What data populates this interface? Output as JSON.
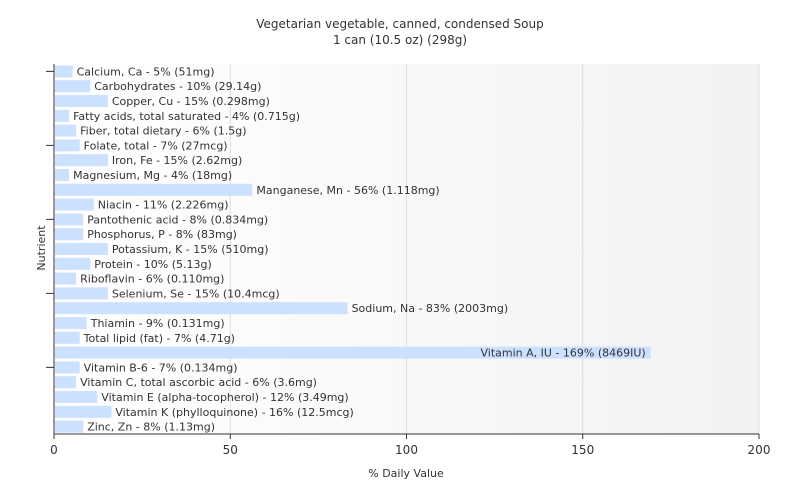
{
  "chart_data": {
    "type": "bar",
    "orientation": "horizontal",
    "title": "Vegetarian vegetable, canned, condensed Soup",
    "subtitle": "1 can (10.5 oz) (298g)",
    "xlabel": "% Daily Value",
    "ylabel": "Nutrient",
    "xlim": [
      0,
      200
    ],
    "xticks": [
      0,
      50,
      100,
      150,
      200
    ],
    "grid": true,
    "bar_color": "#cce0ff",
    "bars": [
      {
        "label": "Calcium, Ca - 5% (51mg)",
        "value": 5
      },
      {
        "label": "Carbohydrates - 10% (29.14g)",
        "value": 10
      },
      {
        "label": "Copper, Cu - 15% (0.298mg)",
        "value": 15
      },
      {
        "label": "Fatty acids, total saturated - 4% (0.715g)",
        "value": 4
      },
      {
        "label": "Fiber, total dietary - 6% (1.5g)",
        "value": 6
      },
      {
        "label": "Folate, total - 7% (27mcg)",
        "value": 7
      },
      {
        "label": "Iron, Fe - 15% (2.62mg)",
        "value": 15
      },
      {
        "label": "Magnesium, Mg - 4% (18mg)",
        "value": 4
      },
      {
        "label": "Manganese, Mn - 56% (1.118mg)",
        "value": 56
      },
      {
        "label": "Niacin - 11% (2.226mg)",
        "value": 11
      },
      {
        "label": "Pantothenic acid - 8% (0.834mg)",
        "value": 8
      },
      {
        "label": "Phosphorus, P - 8% (83mg)",
        "value": 8
      },
      {
        "label": "Potassium, K - 15% (510mg)",
        "value": 15
      },
      {
        "label": "Protein - 10% (5.13g)",
        "value": 10
      },
      {
        "label": "Riboflavin - 6% (0.110mg)",
        "value": 6
      },
      {
        "label": "Selenium, Se - 15% (10.4mcg)",
        "value": 15
      },
      {
        "label": "Sodium, Na - 83% (2003mg)",
        "value": 83
      },
      {
        "label": "Thiamin - 9% (0.131mg)",
        "value": 9
      },
      {
        "label": "Total lipid (fat) - 7% (4.71g)",
        "value": 7
      },
      {
        "label": "Vitamin A, IU - 169% (8469IU)",
        "value": 169
      },
      {
        "label": "Vitamin B-6 - 7% (0.134mg)",
        "value": 7
      },
      {
        "label": "Vitamin C, total ascorbic acid - 6% (3.6mg)",
        "value": 6
      },
      {
        "label": "Vitamin E (alpha-tocopherol) - 12% (3.49mg)",
        "value": 12
      },
      {
        "label": "Vitamin K (phylloquinone) - 16% (12.5mcg)",
        "value": 16
      },
      {
        "label": "Zinc, Zn - 8% (1.13mg)",
        "value": 8
      }
    ]
  }
}
